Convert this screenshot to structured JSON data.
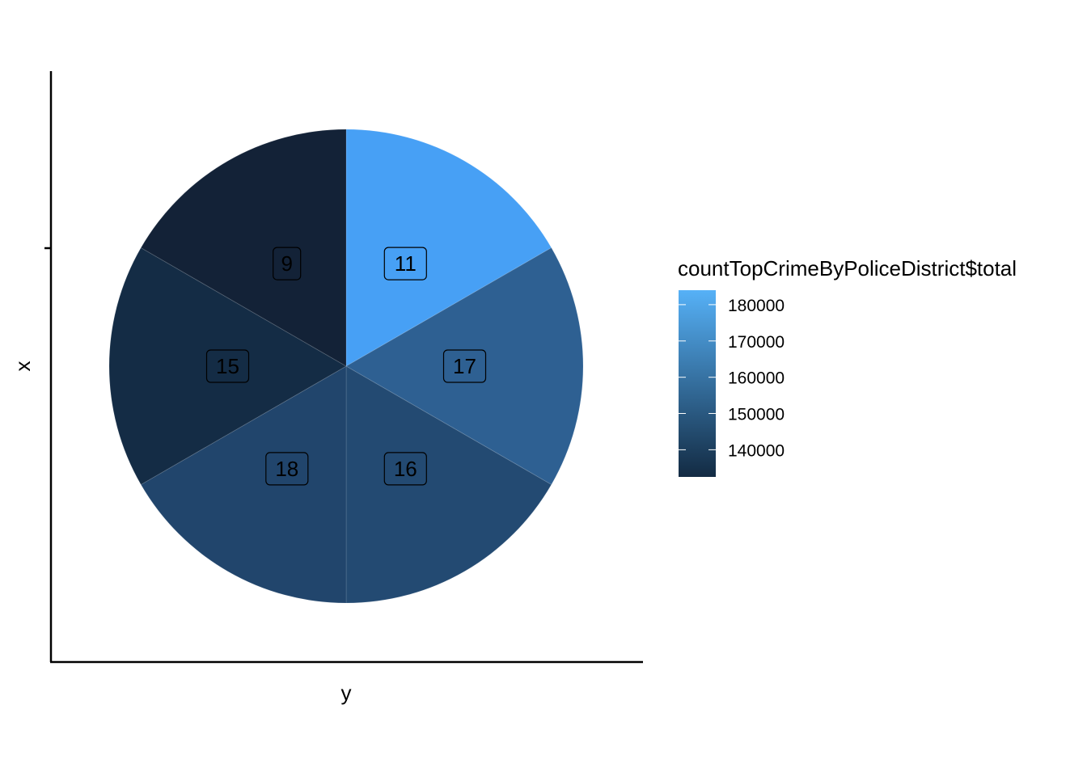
{
  "chart_data": {
    "type": "pie",
    "xlabel": "y",
    "ylabel": "x",
    "slices": [
      {
        "label": "11",
        "value": 1,
        "total": 182000
      },
      {
        "label": "17",
        "value": 1,
        "total": 157000
      },
      {
        "label": "16",
        "value": 1,
        "total": 146000
      },
      {
        "label": "18",
        "value": 1,
        "total": 144000
      },
      {
        "label": "15",
        "value": 1,
        "total": 136000
      },
      {
        "label": "9",
        "value": 1,
        "total": 135000
      }
    ],
    "legend": {
      "title": "countTopCrimeByPoliceDistrict$total",
      "placement": "right",
      "range": [
        132500,
        184000
      ],
      "ticks": [
        {
          "value": 180000,
          "label": "180000"
        },
        {
          "value": 170000,
          "label": "170000"
        },
        {
          "value": 160000,
          "label": "160000"
        },
        {
          "value": 150000,
          "label": "150000"
        },
        {
          "value": 140000,
          "label": "140000"
        }
      ],
      "color_low": "#132B43",
      "color_high": "#56B1F7"
    },
    "colors": {
      "slice_11": "#47A0F5",
      "slice_17": "#2E6092",
      "slice_16": "#234A72",
      "slice_18": "#21456C",
      "slice_15": "#142C45",
      "slice_9": "#132237"
    }
  }
}
